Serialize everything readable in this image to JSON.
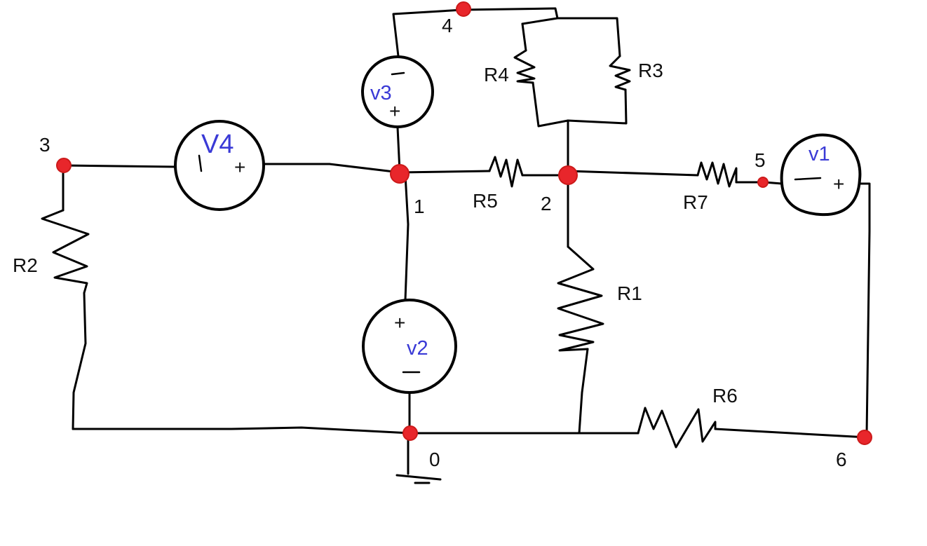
{
  "nodes": [
    "0",
    "1",
    "2",
    "3",
    "4",
    "5",
    "6"
  ],
  "resistors": [
    "R1",
    "R2",
    "R3",
    "R4",
    "R5",
    "R6",
    "R7"
  ],
  "sources": [
    "v1",
    "v2",
    "v3",
    "V4"
  ],
  "polarity": {
    "plus": "+",
    "minus": "−"
  },
  "colors": {
    "node": "#e8262b",
    "source_label": "#3a3ad6",
    "wire": "#000000"
  }
}
